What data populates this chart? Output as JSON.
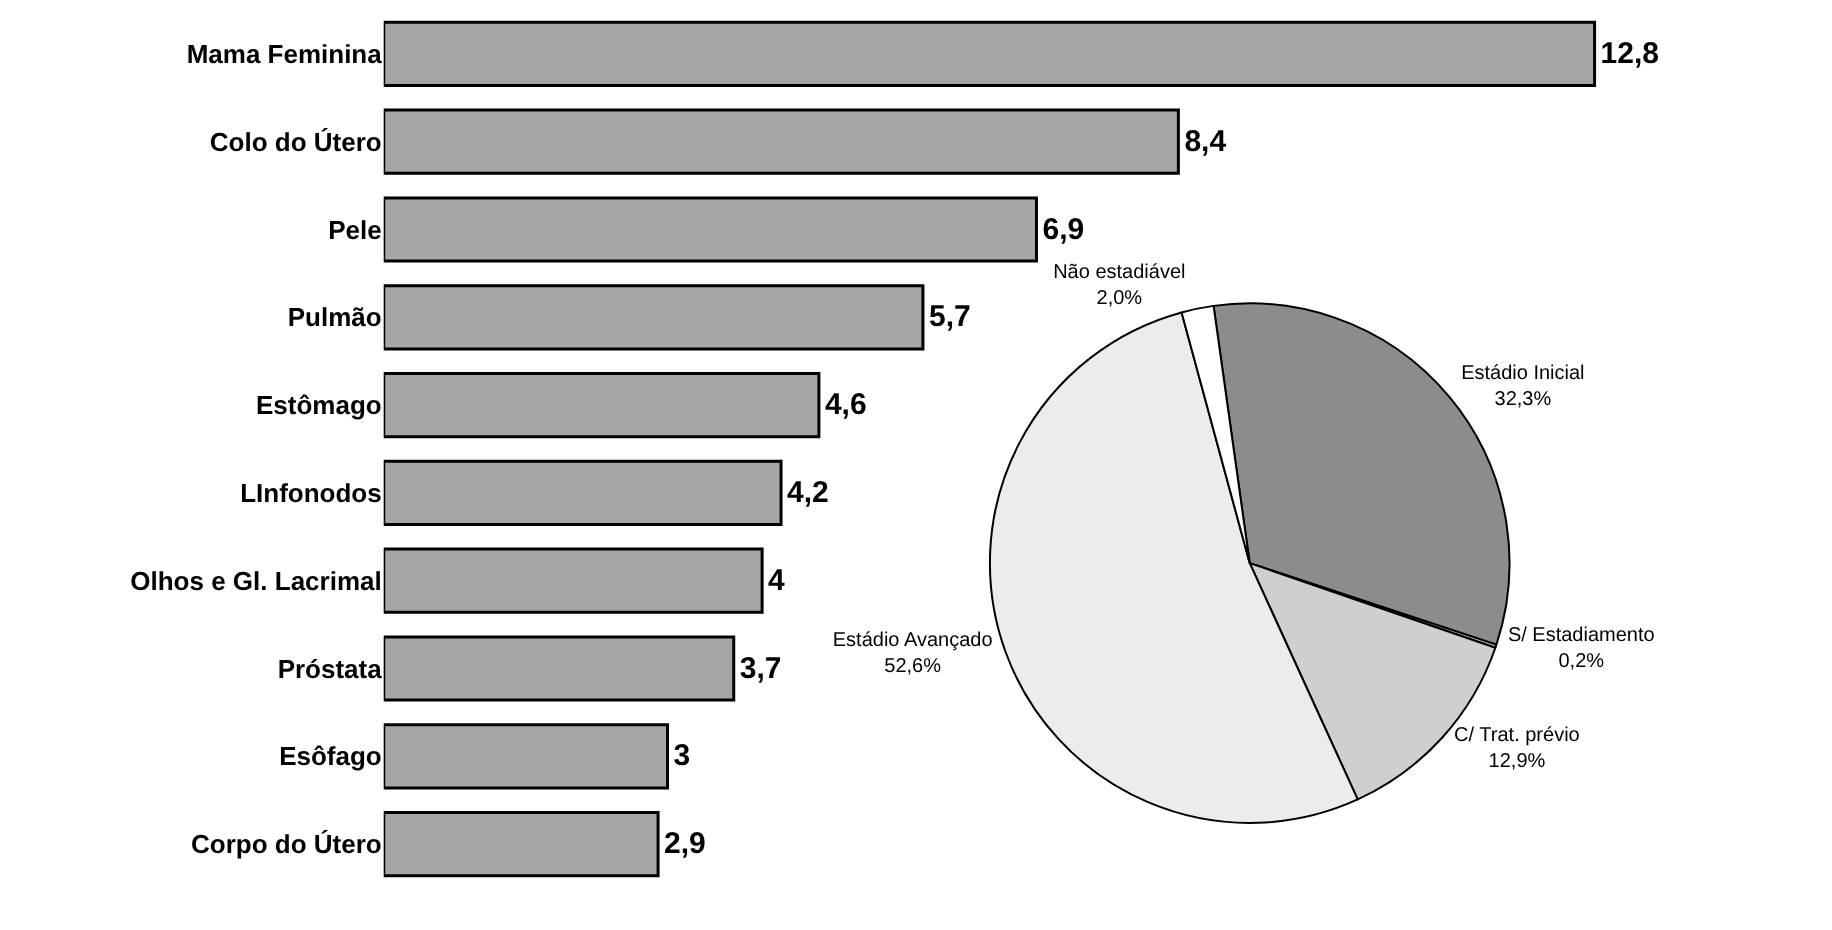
{
  "chart_data": [
    {
      "type": "bar",
      "orientation": "horizontal",
      "categories": [
        "Mama Feminina",
        "Colo do Útero",
        "Pele",
        "Pulmão",
        "Estômago",
        "LInfonodos",
        "Olhos e Gl. Lacrimal",
        "Próstata",
        "Esôfago",
        "Corpo do Útero"
      ],
      "values": [
        12.8,
        8.4,
        6.9,
        5.7,
        4.6,
        4.2,
        4,
        3.7,
        3,
        2.9
      ],
      "value_labels": [
        "12,8",
        "8,4",
        "6,9",
        "5,7",
        "4,6",
        "4,2",
        "4",
        "3,7",
        "3",
        "2,9"
      ],
      "color": "#a6a6a6"
    },
    {
      "type": "pie",
      "categories": [
        "Estádio Inicial",
        "S/ Estadiamento",
        "C/ Trat. prévio",
        "Estádio Avançado",
        "Não estadiável"
      ],
      "values": [
        32.3,
        0.2,
        12.9,
        52.6,
        2.0
      ],
      "value_labels": [
        "32,3%",
        "0,2%",
        "12,9%",
        "52,6%",
        "2,0%"
      ],
      "colors": [
        "#8c8c8c",
        "#bdbdbd",
        "#cfcfcf",
        "#ececec",
        "#ffffff"
      ]
    }
  ]
}
